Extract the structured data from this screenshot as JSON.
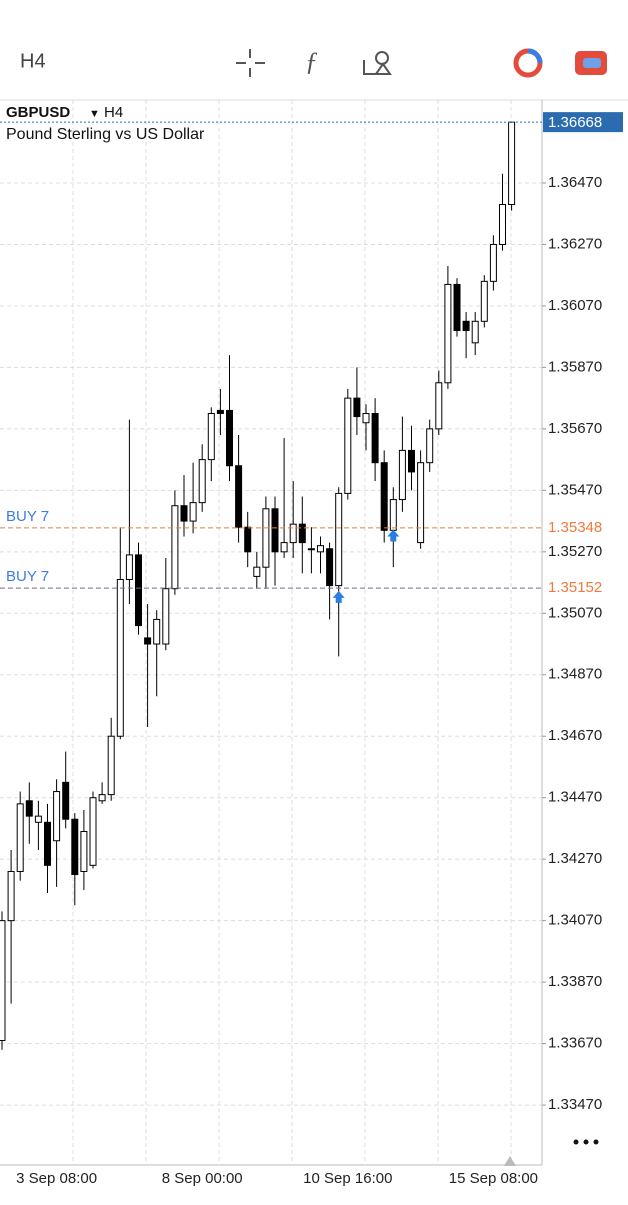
{
  "toolbar": {
    "timeframe": "H4"
  },
  "chart_data": {
    "type": "candlestick",
    "symbol": "GBPUSD",
    "timeframe": "H4",
    "description": "Pound Sterling vs US Dollar",
    "categories": [
      null,
      null,
      null,
      null,
      null,
      null,
      "3 Sep 08:00",
      null,
      null,
      null,
      null,
      null,
      null,
      null,
      null,
      null,
      null,
      null,
      null,
      null,
      null,
      null,
      "8 Sep 00:00",
      null,
      null,
      null,
      null,
      null,
      null,
      null,
      null,
      null,
      null,
      null,
      null,
      null,
      null,
      null,
      "10 Sep 16:00",
      null,
      null,
      null,
      null,
      null,
      null,
      null,
      null,
      null,
      null,
      null,
      null,
      null,
      null,
      null,
      "15 Sep 08:00",
      null,
      null
    ],
    "open": [
      1.3368,
      1.3407,
      1.3423,
      1.3446,
      1.3439,
      1.3439,
      1.3433,
      1.3452,
      1.344,
      1.3423,
      1.3425,
      1.3446,
      1.3448,
      1.3467,
      1.3518,
      1.3526,
      1.3499,
      1.3497,
      1.3497,
      1.3515,
      1.3542,
      1.3537,
      1.3543,
      1.3557,
      1.3573,
      1.3573,
      1.3555,
      1.3535,
      1.3519,
      1.3522,
      1.3541,
      1.3527,
      1.353,
      1.3536,
      1.3528,
      1.3527,
      1.3528,
      1.3516,
      1.3546,
      1.3577,
      1.3569,
      1.3572,
      1.3556,
      1.3534,
      1.3544,
      1.356,
      1.353,
      1.3556,
      1.3567,
      1.3582,
      1.3614,
      1.3602,
      1.3595,
      1.3602,
      1.3615,
      1.3627,
      1.364
    ],
    "high": [
      1.341,
      1.343,
      1.3449,
      1.3452,
      1.3446,
      1.3445,
      1.3453,
      1.3462,
      1.3442,
      1.3443,
      1.3449,
      1.3452,
      1.3473,
      1.3535,
      1.357,
      1.353,
      1.351,
      1.3508,
      1.3525,
      1.3547,
      1.3552,
      1.3556,
      1.3562,
      1.3574,
      1.358,
      1.3591,
      1.3565,
      1.354,
      1.3527,
      1.3545,
      1.3545,
      1.3564,
      1.355,
      1.3545,
      1.3535,
      1.3532,
      1.353,
      1.3548,
      1.358,
      1.3587,
      1.3575,
      1.3577,
      1.356,
      1.3548,
      1.3571,
      1.3568,
      1.356,
      1.357,
      1.3586,
      1.362,
      1.3616,
      1.3605,
      1.3605,
      1.3617,
      1.363,
      1.365,
      1.36668
    ],
    "low": [
      1.3365,
      1.338,
      1.342,
      1.3432,
      1.343,
      1.3416,
      1.3418,
      1.3437,
      1.3412,
      1.3417,
      1.3424,
      1.3445,
      1.3446,
      1.3466,
      1.351,
      1.35,
      1.347,
      1.348,
      1.3495,
      1.3513,
      1.3532,
      1.3533,
      1.354,
      1.355,
      1.3565,
      1.355,
      1.353,
      1.3522,
      1.3515,
      1.3515,
      1.3516,
      1.3525,
      1.3525,
      1.352,
      1.352,
      1.352,
      1.3505,
      1.3493,
      1.3544,
      1.3565,
      1.356,
      1.355,
      1.353,
      1.3522,
      1.354,
      1.3547,
      1.3528,
      1.3553,
      1.3565,
      1.358,
      1.3597,
      1.359,
      1.3591,
      1.36,
      1.3612,
      1.3625,
      1.3638
    ],
    "close": [
      1.3407,
      1.3423,
      1.3445,
      1.3441,
      1.3441,
      1.3425,
      1.3449,
      1.344,
      1.3422,
      1.3436,
      1.3447,
      1.3448,
      1.3467,
      1.3518,
      1.3526,
      1.3503,
      1.3497,
      1.3505,
      1.3515,
      1.3542,
      1.3537,
      1.3543,
      1.3557,
      1.3572,
      1.3572,
      1.3555,
      1.3535,
      1.3527,
      1.3522,
      1.3541,
      1.3527,
      1.353,
      1.3536,
      1.353,
      1.3528,
      1.3529,
      1.3516,
      1.3546,
      1.3577,
      1.3571,
      1.3572,
      1.3556,
      1.3534,
      1.3544,
      1.356,
      1.3553,
      1.3556,
      1.3567,
      1.3582,
      1.3614,
      1.3599,
      1.3599,
      1.3602,
      1.3615,
      1.3627,
      1.364,
      1.36668
    ],
    "ylim": [
      1.33275,
      1.3674
    ],
    "yticks": [
      {
        "value": 1.3647,
        "label": "1.36470"
      },
      {
        "value": 1.3627,
        "label": "1.36270"
      },
      {
        "value": 1.3607,
        "label": "1.36070"
      },
      {
        "value": 1.3587,
        "label": "1.35870"
      },
      {
        "value": 1.3567,
        "label": "1.35670"
      },
      {
        "value": 1.3547,
        "label": "1.35470"
      },
      {
        "value": 1.3527,
        "label": "1.35270"
      },
      {
        "value": 1.3507,
        "label": "1.35070"
      },
      {
        "value": 1.3487,
        "label": "1.34870"
      },
      {
        "value": 1.3467,
        "label": "1.34670"
      },
      {
        "value": 1.3447,
        "label": "1.34470"
      },
      {
        "value": 1.3427,
        "label": "1.34270"
      },
      {
        "value": 1.3407,
        "label": "1.34070"
      },
      {
        "value": 1.3387,
        "label": "1.33870"
      },
      {
        "value": 1.3367,
        "label": "1.33670"
      },
      {
        "value": 1.3347,
        "label": "1.33470"
      }
    ],
    "grid": true,
    "price_lines": [
      {
        "name": "BUY 7",
        "value": 1.35348,
        "value_label": "1.35348",
        "color": "#f07a3e"
      },
      {
        "name": "BUY 7",
        "value": 1.35152,
        "value_label": "1.35152",
        "color": "#7a6a8a"
      }
    ],
    "current_price": {
      "value": 1.36668,
      "label": "1.36668",
      "color": "#2b6cb0"
    }
  }
}
